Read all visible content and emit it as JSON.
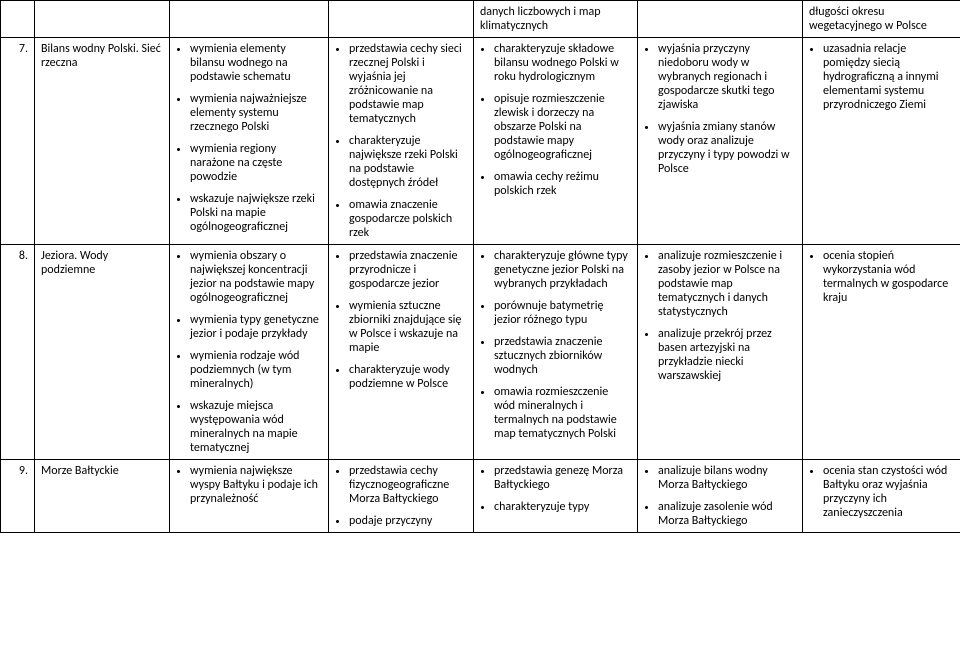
{
  "rows": [
    {
      "num": "",
      "topic": "",
      "colA": [],
      "colB": [],
      "colC_plain": "danych liczbowych i map klimatycznych",
      "colC": [],
      "colD": [],
      "colE_plain": "długości okresu wegetacyjnego w Polsce",
      "colE": []
    },
    {
      "num": "7.",
      "topic": "Bilans wodny Polski. Sieć rzeczna",
      "colA": [
        "wymienia elementy bilansu wodnego na podstawie schematu",
        "wymienia najważniejsze elementy systemu rzecznego Polski",
        "wymienia regiony narażone na częste powodzie",
        "wskazuje największe rzeki Polski na mapie ogólnogeograficznej"
      ],
      "colB": [
        "przedstawia cechy sieci rzecznej Polski i wyjaśnia jej zróżnicowanie na podstawie map tematycznych",
        "charakteryzuje największe rzeki Polski na podstawie dostępnych źródeł",
        "omawia znaczenie gospodarcze polskich rzek"
      ],
      "colC": [
        "charakteryzuje składowe bilansu wodnego Polski w roku hydrologicznym",
        "opisuje rozmieszczenie zlewisk i dorzeczy na obszarze Polski na podstawie mapy ogólnogeograficznej",
        "omawia cechy reżimu polskich rzek"
      ],
      "colD": [
        "wyjaśnia przyczyny niedoboru wody w wybranych regionach i gospodarcze skutki tego zjawiska",
        "wyjaśnia zmiany stanów wody oraz analizuje przyczyny i typy powodzi w Polsce"
      ],
      "colE": [
        "uzasadnia relacje pomiędzy siecią hydrograficzną a innymi elementami systemu przyrodniczego Ziemi"
      ]
    },
    {
      "num": "8.",
      "topic": "Jeziora. Wody podziemne",
      "colA": [
        "wymienia obszary o największej koncentracji jezior na podstawie mapy ogólnogeograficznej",
        "wymienia typy genetyczne jezior i podaje przykłady",
        "wymienia rodzaje wód podziemnych (w tym mineralnych)",
        "wskazuje miejsca występowania wód mineralnych na mapie tematycznej"
      ],
      "colB": [
        "przedstawia znaczenie przyrodnicze i gospodarcze jezior",
        "wymienia sztuczne zbiorniki znajdujące się w Polsce i wskazuje na mapie",
        "charakteryzuje wody podziemne w Polsce"
      ],
      "colC": [
        "charakteryzuje główne typy genetyczne jezior Polski na wybranych przykładach",
        "porównuje batymetrię jezior różnego typu",
        "przedstawia znaczenie sztucznych zbiorników wodnych",
        "omawia rozmieszczenie wód mineralnych i termalnych na podstawie map tematycznych Polski"
      ],
      "colD": [
        "analizuje rozmieszczenie i zasoby jezior w Polsce na podstawie map tematycznych i danych statystycznych",
        "analizuje przekrój przez basen artezyjski na przykładzie niecki warszawskiej"
      ],
      "colE": [
        "ocenia stopień wykorzystania wód termalnych w gospodarce kraju"
      ]
    },
    {
      "num": "9.",
      "topic": "Morze Bałtyckie",
      "colA": [
        "wymienia największe wyspy Bałtyku i podaje ich przynależność"
      ],
      "colB": [
        "przedstawia cechy fizycznogeograficzne Morza Bałtyckiego",
        "podaje przyczyny"
      ],
      "colC": [
        "przedstawia genezę Morza Bałtyckiego",
        "charakteryzuje typy"
      ],
      "colD": [
        "analizuje bilans wodny Morza Bałtyckiego",
        "analizuje zasolenie wód Morza Bałtyckiego"
      ],
      "colE": [
        "ocenia stan czystości wód Bałtyku oraz wyjaśnia przyczyny ich zanieczyszczenia"
      ]
    }
  ]
}
